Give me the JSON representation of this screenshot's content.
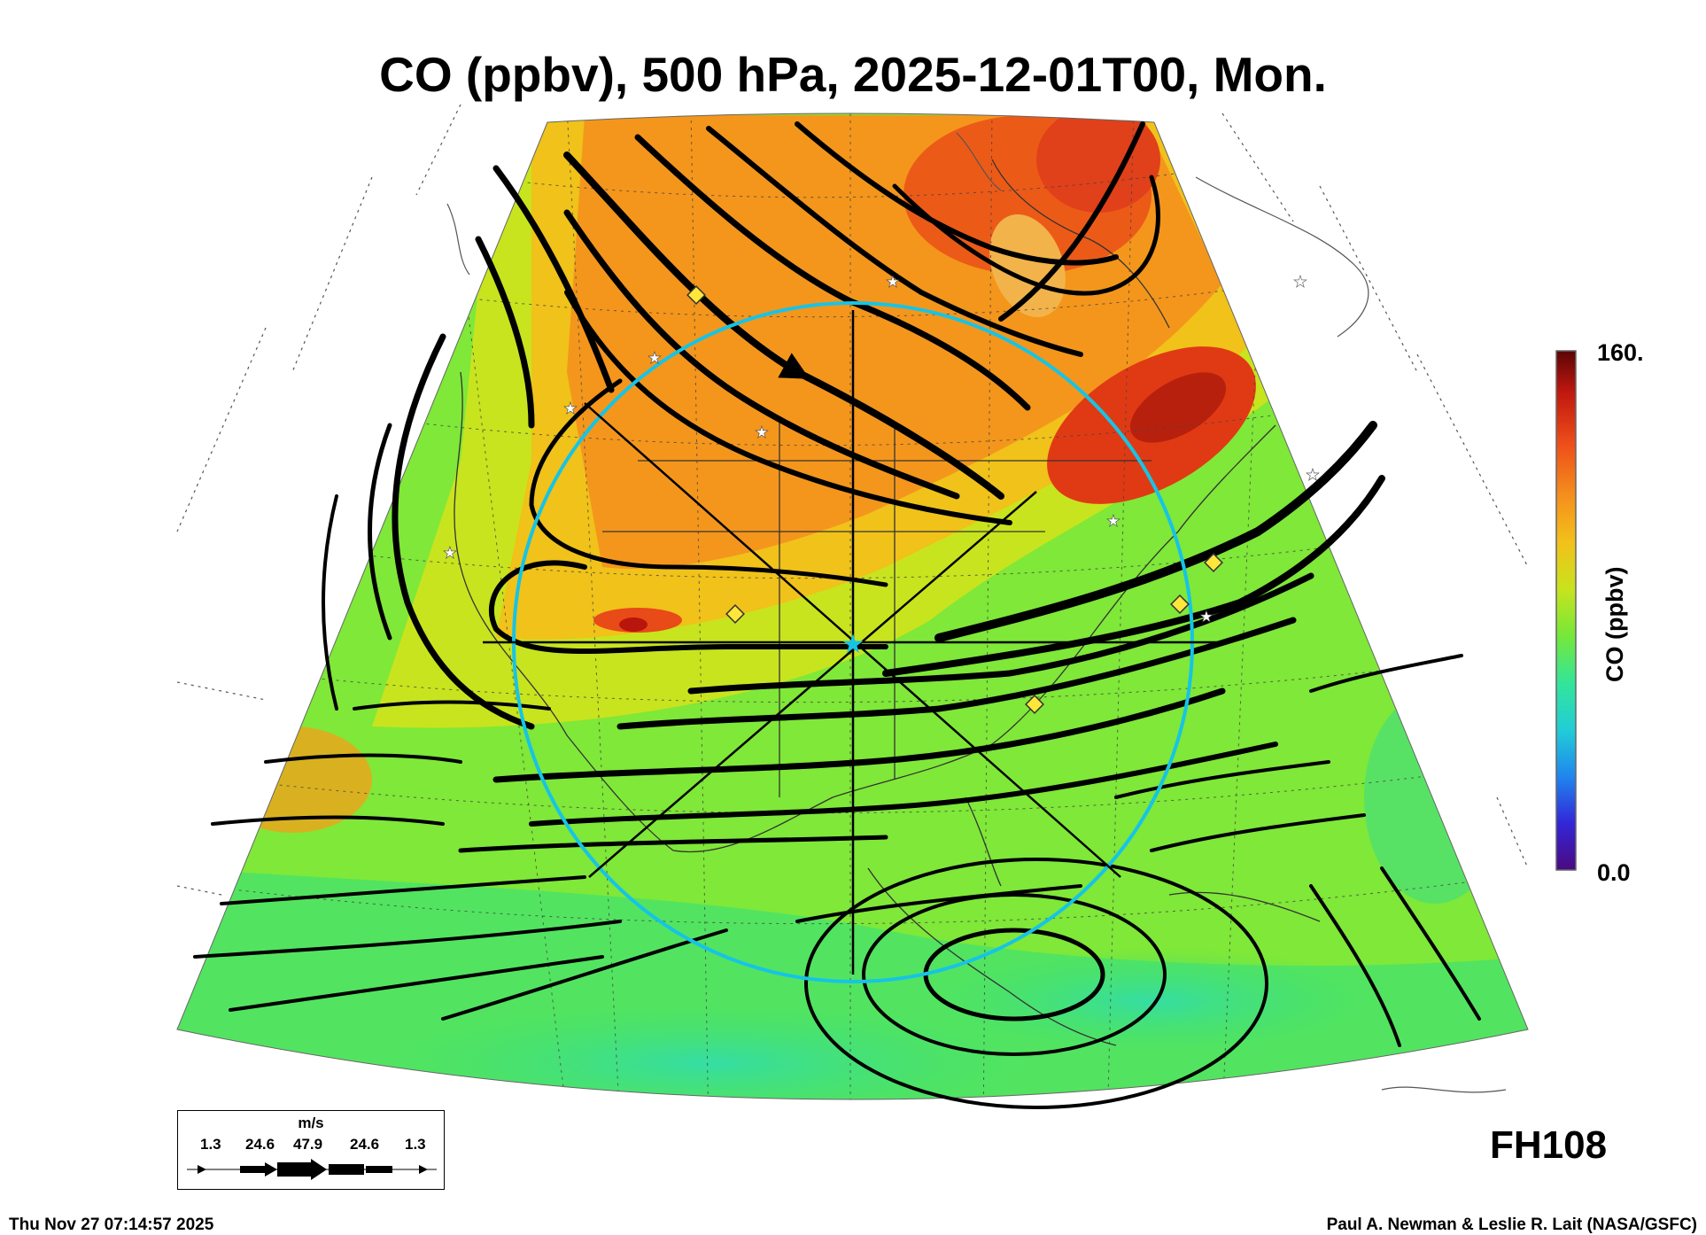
{
  "title": "CO (ppbv), 500 hPa, 2025-12-01T00, Mon.",
  "colorbar": {
    "label": "CO (ppbv)",
    "max_label": "160.",
    "min_label": "0.0",
    "stops": [
      "#4b0a80",
      "#3326d8",
      "#1f86ee",
      "#22cdd6",
      "#33e59a",
      "#74e83a",
      "#c7e31e",
      "#f3c11a",
      "#f4901c",
      "#ee4e1a",
      "#c0180f",
      "#5a0505"
    ]
  },
  "forecast_hour": "FH108",
  "wind_legend": {
    "unit": "m/s",
    "values": [
      "1.3",
      "24.6",
      "47.9",
      "24.6",
      "1.3"
    ]
  },
  "footer": {
    "timestamp": "Thu Nov 27 07:14:57 2025",
    "credit": "Paul A. Newman & Leslie R. Lait (NASA/GSFC)"
  },
  "map": {
    "field": "CO concentration at 500 hPa",
    "overlay": "wind streamlines",
    "markers": [
      "white star stations",
      "yellow diamond sites",
      "cyan center star with range circle"
    ]
  }
}
